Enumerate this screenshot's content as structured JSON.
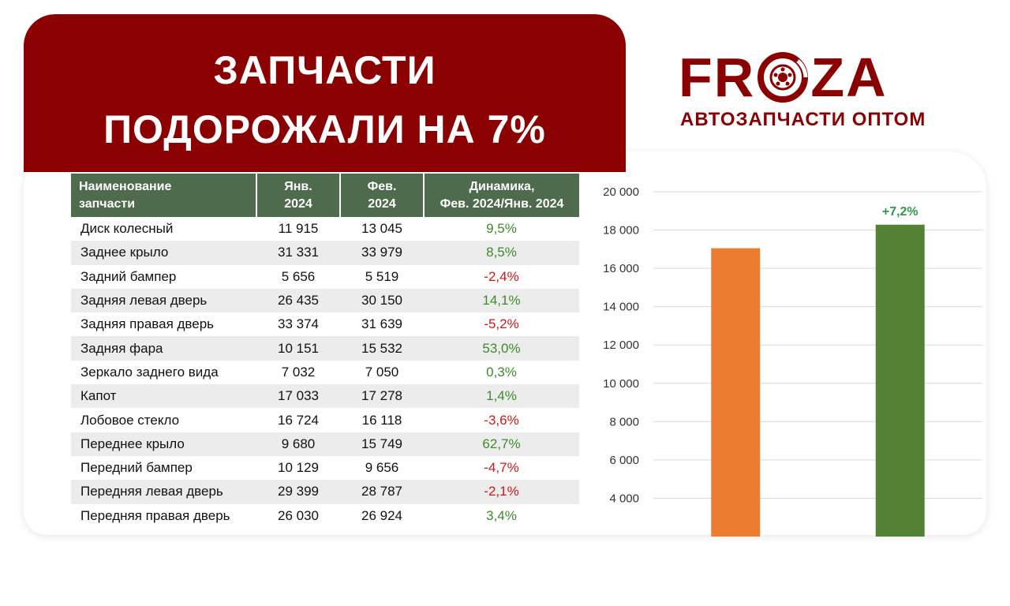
{
  "banner": {
    "line1": "ЗАПЧАСТИ",
    "line2": "ПОДОРОЖАЛИ НА 7%"
  },
  "logo": {
    "part1": "FR",
    "part2": "ZA",
    "tagline": "АВТОЗАПЧАСТИ ОПТОМ"
  },
  "colors": {
    "banner": "#8b0000",
    "header": "#4e6b4d",
    "positive": "#3f8a2a",
    "negative": "#d01818",
    "bar_jan": "#ec7c30",
    "bar_feb": "#548235"
  },
  "table": {
    "headers": {
      "name": [
        "Наименование",
        "запчасти"
      ],
      "jan": [
        "Янв.",
        "2024"
      ],
      "feb": [
        "Фев.",
        "2024"
      ],
      "dyn": [
        "Динамика,",
        "Фев. 2024/Янв. 2024"
      ]
    },
    "rows": [
      {
        "name": "Диск колесный",
        "jan": "11 915",
        "feb": "13 045",
        "dyn": "9,5%",
        "sign": "pos"
      },
      {
        "name": "Заднее крыло",
        "jan": "31 331",
        "feb": "33 979",
        "dyn": "8,5%",
        "sign": "pos"
      },
      {
        "name": "Задний бампер",
        "jan": "5 656",
        "feb": "5 519",
        "dyn": "-2,4%",
        "sign": "neg"
      },
      {
        "name": "Задняя левая дверь",
        "jan": "26 435",
        "feb": "30 150",
        "dyn": "14,1%",
        "sign": "pos"
      },
      {
        "name": "Задняя правая дверь",
        "jan": "33 374",
        "feb": "31 639",
        "dyn": "-5,2%",
        "sign": "neg"
      },
      {
        "name": "Задняя фара",
        "jan": "10 151",
        "feb": "15 532",
        "dyn": "53,0%",
        "sign": "pos"
      },
      {
        "name": "Зеркало заднего вида",
        "jan": "7 032",
        "feb": "7 050",
        "dyn": "0,3%",
        "sign": "pos"
      },
      {
        "name": "Капот",
        "jan": "17 033",
        "feb": "17 278",
        "dyn": "1,4%",
        "sign": "pos"
      },
      {
        "name": "Лобовое стекло",
        "jan": "16 724",
        "feb": "16 118",
        "dyn": "-3,6%",
        "sign": "neg"
      },
      {
        "name": "Переднее крыло",
        "jan": "9 680",
        "feb": "15 749",
        "dyn": "62,7%",
        "sign": "pos"
      },
      {
        "name": "Передний бампер",
        "jan": "10 129",
        "feb": "9 656",
        "dyn": "-4,7%",
        "sign": "neg"
      },
      {
        "name": "Передняя левая дверь",
        "jan": "29 399",
        "feb": "28 787",
        "dyn": "-2,1%",
        "sign": "neg"
      },
      {
        "name": "Передняя правая дверь",
        "jan": "26 030",
        "feb": "26 924",
        "dyn": "3,4%",
        "sign": "pos"
      }
    ]
  },
  "chart_data": {
    "type": "bar",
    "categories": [
      "",
      ""
    ],
    "values": [
      17050,
      18280
    ],
    "bar_colors": [
      "#ec7c30",
      "#548235"
    ],
    "data_labels": [
      "",
      "+7,2%"
    ],
    "ylim": [
      2000,
      20000
    ],
    "yticks": [
      4000,
      6000,
      8000,
      10000,
      12000,
      14000,
      16000,
      18000,
      20000
    ],
    "ytick_labels": [
      "4 000",
      "6 000",
      "8 000",
      "10 000",
      "12 000",
      "14 000",
      "16 000",
      "18 000",
      "20 000"
    ],
    "grid": true,
    "title": "",
    "xlabel": "",
    "ylabel": ""
  }
}
